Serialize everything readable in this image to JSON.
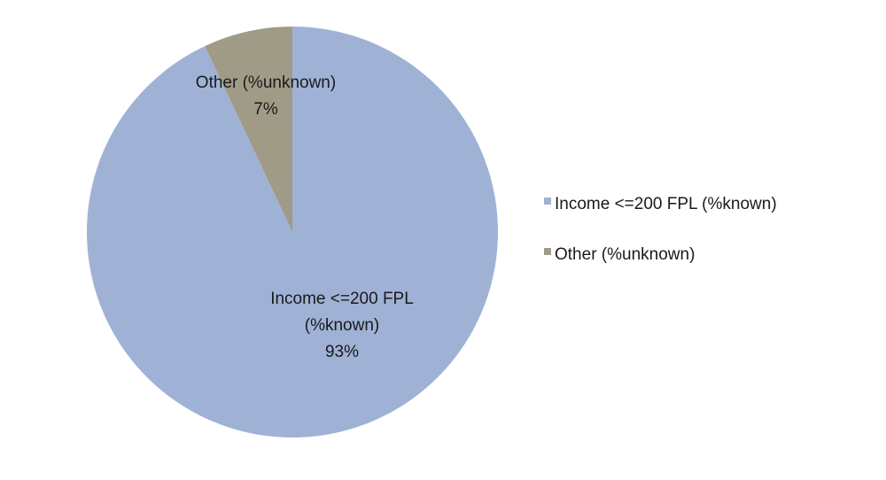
{
  "chart_data": {
    "type": "pie",
    "title": "",
    "slices": [
      {
        "name": "Income <=200 FPL (%known)",
        "value": 93,
        "label_lines": [
          "Income <=200 FPL",
          "(%known)",
          "93%"
        ],
        "color": "#9fb2d6"
      },
      {
        "name": "Other (%unknown)",
        "value": 7,
        "label_lines": [
          "Other (%unknown)",
          "7%"
        ],
        "color": "#a09b86"
      }
    ],
    "start": "12 o'clock",
    "direction": "clockwise",
    "legend": {
      "position": "right",
      "items": [
        {
          "label": "Income <=200 FPL (%known)",
          "color": "#9fb2d6"
        },
        {
          "label": "Other (%unknown)",
          "color": "#a09b86"
        }
      ]
    }
  }
}
